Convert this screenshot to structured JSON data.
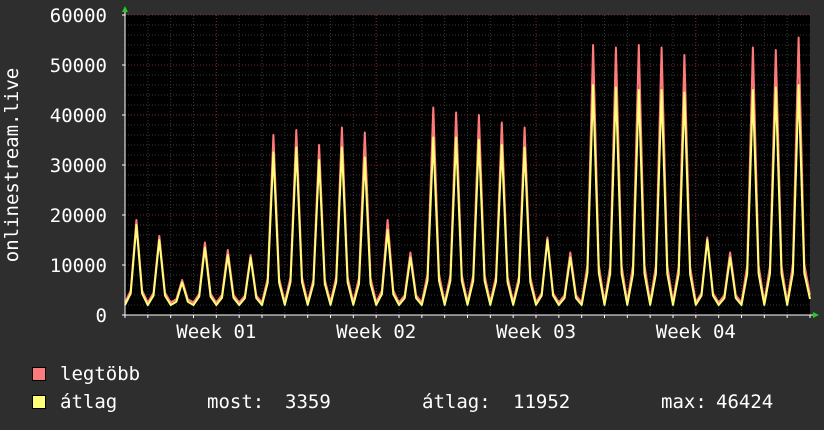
{
  "chart_data": {
    "type": "line",
    "title": "",
    "xlabel": "",
    "ylabel": "onlinestream.live",
    "ylim": [
      0,
      60000
    ],
    "y_ticks": [
      "0",
      "10000",
      "20000",
      "30000",
      "40000",
      "50000",
      "60000"
    ],
    "x_ticks": [
      "Week 01",
      "Week 02",
      "Week 03",
      "Week 04"
    ],
    "grid": true,
    "legend_placement": "bottom",
    "day_peaks": {
      "x_day_offset_from_start": [
        0.5,
        1.5,
        2.5,
        3.5,
        4.5,
        5.5,
        6.5,
        7.5,
        8.5,
        9.5,
        10.5,
        11.5,
        12.5,
        13.5,
        14.5,
        15.5,
        16.5,
        17.5,
        18.5,
        19.5,
        20.5,
        21.5,
        22.5,
        23.5,
        24.5,
        25.5,
        26.5,
        27.5,
        28.5,
        29.5
      ],
      "legtobb": [
        19000,
        15800,
        7000,
        14500,
        13000,
        12000,
        36000,
        37000,
        34000,
        37500,
        36500,
        19000,
        12500,
        41500,
        40500,
        40000,
        38500,
        37500,
        15500,
        12500,
        54000,
        53500,
        54000,
        53500,
        52000,
        15500,
        12500,
        53500,
        53000,
        55500
      ],
      "atlag": [
        18000,
        15000,
        6500,
        13500,
        12000,
        11500,
        32500,
        33500,
        31000,
        33500,
        31500,
        17000,
        11500,
        35500,
        35500,
        35000,
        34000,
        33500,
        15000,
        11500,
        46000,
        45500,
        45000,
        45000,
        44500,
        15000,
        11500,
        45000,
        45500,
        46000
      ]
    },
    "series": [
      {
        "name": "legtöbb",
        "color": "#ff7a7a"
      },
      {
        "name": "átlag",
        "color": "#ffff77"
      }
    ]
  },
  "legend": {
    "items": [
      {
        "label": "legtöbb",
        "color": "#ff7a7a"
      },
      {
        "label": "átlag",
        "color": "#ffff77"
      }
    ],
    "stats": {
      "now_label": "most:",
      "now_value": "3359",
      "avg_label": "átlag:",
      "avg_value": "11952",
      "max_label": "max:",
      "max_value": "46424"
    }
  }
}
